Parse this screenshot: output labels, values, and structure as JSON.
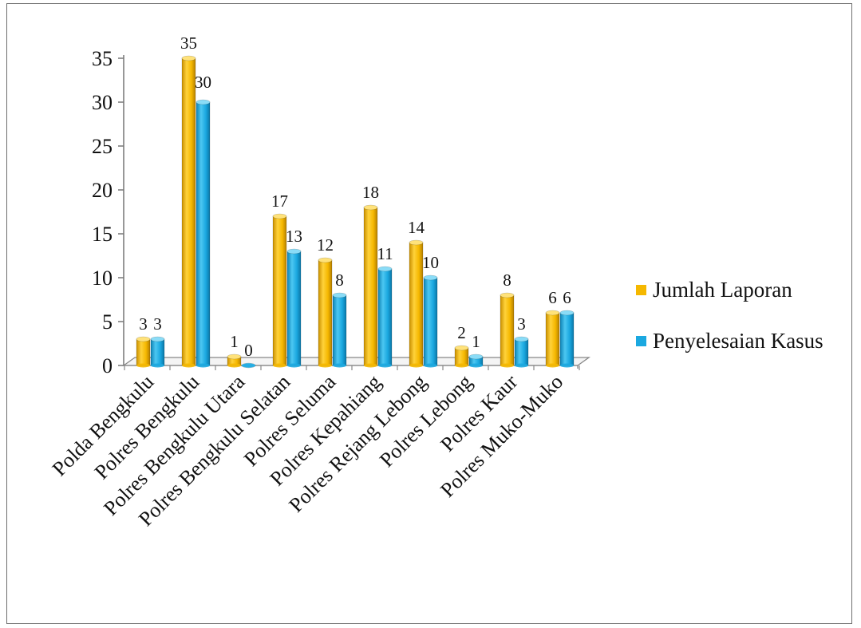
{
  "chart_data": {
    "type": "bar",
    "categories": [
      "Polda Bengkulu",
      "Polres Bengkulu",
      "Polres Bengkulu Utara",
      "Polres Bengkulu Selatan",
      "Polres Seluma",
      "Polres Kepahiang",
      "Polres Rejang Lebong",
      "Polres Lebong",
      "Polres Kaur",
      "Polres Muko-Muko"
    ],
    "series": [
      {
        "name": "Jumlah Laporan",
        "values": [
          3,
          35,
          1,
          17,
          12,
          18,
          14,
          2,
          8,
          6
        ],
        "color": "#f5b800"
      },
      {
        "name": "Penyelesaian Kasus",
        "values": [
          3,
          30,
          0,
          13,
          8,
          11,
          10,
          1,
          3,
          6
        ],
        "color": "#1ba8e0"
      }
    ],
    "yticks": [
      "0",
      "5",
      "10",
      "15",
      "20",
      "25",
      "30",
      "35"
    ],
    "ylim": [
      0,
      35
    ],
    "legend_position": "right",
    "grid": false,
    "style": "3d-cylinder"
  }
}
